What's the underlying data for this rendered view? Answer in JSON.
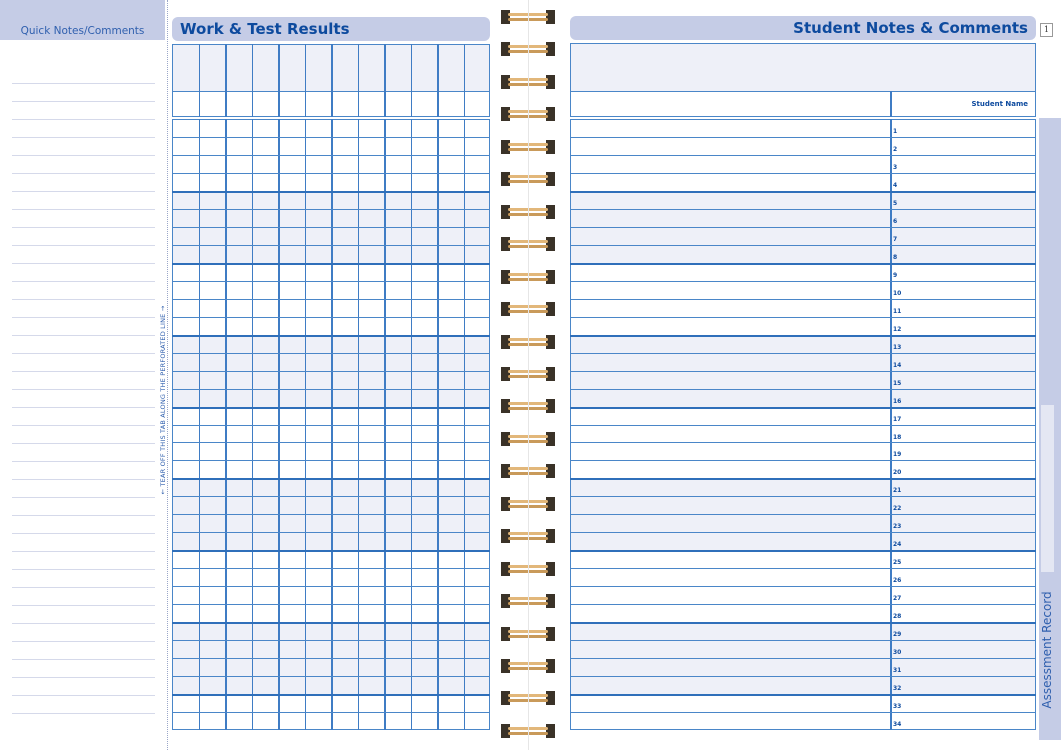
{
  "quick_notes": {
    "title": "Quick Notes/Comments"
  },
  "tear_off": "← TEAR OFF THIS TAB ALONG THE PERFORATED LINE →",
  "work_test": {
    "title": "Work & Test Results",
    "columns": 12,
    "rows": 34
  },
  "student_notes": {
    "title": "Student Notes & Comments",
    "name_header": "Student Name",
    "row_numbers": [
      "1",
      "2",
      "3",
      "4",
      "5",
      "6",
      "7",
      "8",
      "9",
      "10",
      "11",
      "12",
      "13",
      "14",
      "15",
      "16",
      "17",
      "18",
      "19",
      "20",
      "21",
      "22",
      "23",
      "24",
      "25",
      "26",
      "27",
      "28",
      "29",
      "30",
      "31",
      "32",
      "33",
      "34"
    ]
  },
  "page_number": "1",
  "side_tab": "Assessment Record",
  "colors": {
    "accent": "#c5cce6",
    "line": "#4a86c8",
    "title_text": "#0d4a9e",
    "shade": "#eef0f8"
  }
}
